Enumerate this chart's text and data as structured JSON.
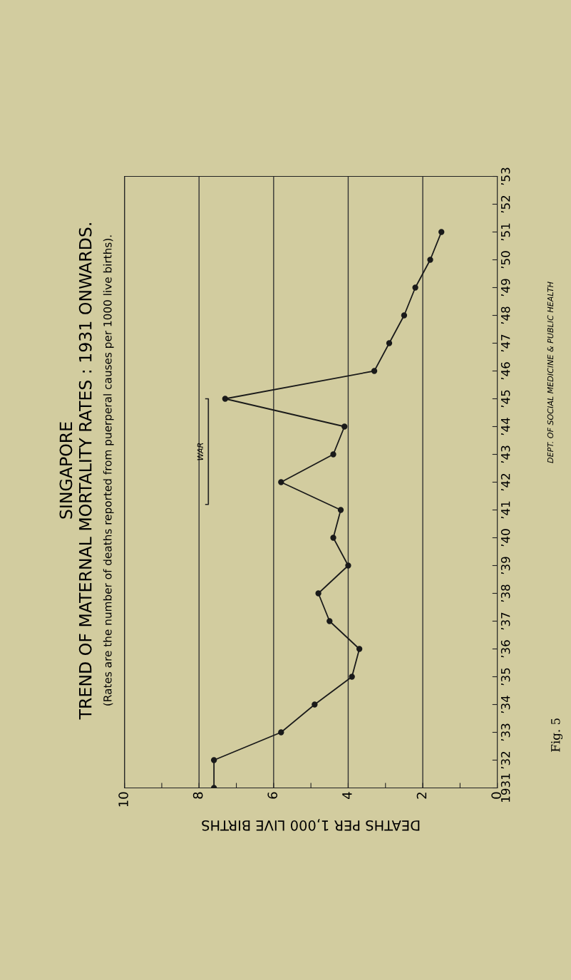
{
  "chart_data": {
    "type": "line",
    "title": "SINGAPORE",
    "subtitle": "TREND OF MATERNAL MORTALITY RATES : 1931 ONWARDS.",
    "xlabel": "DEATHS PER 1,000 LIVE BIRTHS",
    "series": [
      {
        "color": "#1a1a1a",
        "x": [
          7.6,
          7.6,
          5.8,
          4.9,
          3.9,
          3.7,
          4.5,
          4.8,
          4.0,
          4.4,
          4.2,
          5.8,
          4.4,
          4.1,
          7.3,
          3.3,
          2.9,
          2.5,
          2.2,
          1.8,
          1.5
        ],
        "values": [
          1931,
          1932,
          1933,
          1934,
          1935,
          1936,
          1937,
          1938,
          1939,
          1940,
          1941,
          1942,
          1943,
          1944,
          1945,
          1946,
          1947,
          1948,
          1949,
          1950,
          1951
        ]
      }
    ],
    "ylim": [
      1931,
      1953
    ],
    "yticks": [
      {
        "value": 1931,
        "label": "1931"
      },
      {
        "value": 1932,
        "label": "’32"
      },
      {
        "value": 1933,
        "label": "’33"
      },
      {
        "value": 1934,
        "label": "’34"
      },
      {
        "value": 1935,
        "label": "’35"
      },
      {
        "value": 1936,
        "label": "’36"
      },
      {
        "value": 1937,
        "label": "’37"
      },
      {
        "value": 1938,
        "label": "’38"
      },
      {
        "value": 1939,
        "label": "’39"
      },
      {
        "value": 1940,
        "label": "’40"
      },
      {
        "value": 1941,
        "label": "’41"
      },
      {
        "value": 1942,
        "label": "’42"
      },
      {
        "value": 1943,
        "label": "’43"
      },
      {
        "value": 1944,
        "label": "’44"
      },
      {
        "value": 1945,
        "label": "’45"
      },
      {
        "value": 1946,
        "label": "’46"
      },
      {
        "value": 1947,
        "label": "’47"
      },
      {
        "value": 1948,
        "label": "’48"
      },
      {
        "value": 1949,
        "label": "’49"
      },
      {
        "value": 1950,
        "label": "’50"
      },
      {
        "value": 1951,
        "label": "’51"
      },
      {
        "value": 1952,
        "label": "’52"
      },
      {
        "value": 1953,
        "label": "’53"
      }
    ],
    "xlim": [
      10,
      0
    ],
    "xticks": [
      0,
      {
        "value": 1,
        "label": null
      },
      2,
      {
        "value": 3,
        "label": null
      },
      4,
      {
        "value": 5,
        "label": null
      },
      6,
      {
        "value": 7,
        "label": null
      },
      8,
      {
        "value": 9,
        "label": null
      },
      10
    ],
    "annotations": [
      "WAR",
      "(Rates are the number of deaths reported from puerperal causes per 1000 live births).",
      "DEPT. OF SOCIAL MEDICINE & PUBLIC HEALTH",
      "Fig. 5"
    ],
    "grid": "x",
    "marker": "circle",
    "line_style": "solid"
  }
}
